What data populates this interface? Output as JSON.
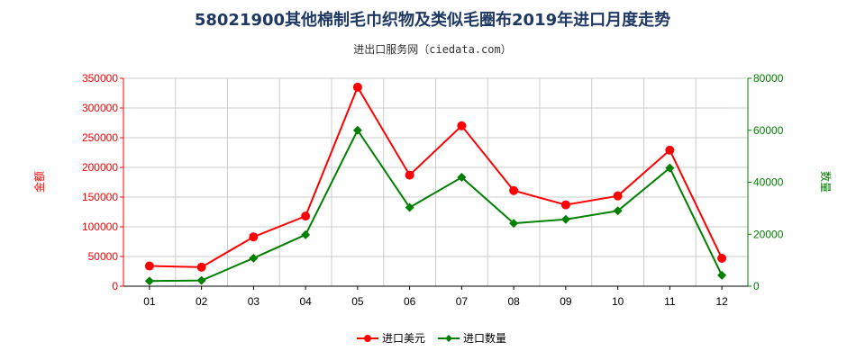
{
  "title": "58021900其他棉制毛巾织物及类似毛圈布2019年进口月度走势",
  "subtitle": "进出口服务网（ciedata.com）",
  "colors": {
    "left": "#ff0000",
    "right": "#008000",
    "grid": "#cccccc",
    "title": "#1f3864"
  },
  "chart_data": {
    "type": "line",
    "categories": [
      "01",
      "02",
      "03",
      "04",
      "05",
      "06",
      "07",
      "08",
      "09",
      "10",
      "11",
      "12"
    ],
    "y_left": {
      "label": "金额",
      "ylim": [
        0,
        350000
      ],
      "ticks": [
        "0",
        "50000",
        "100000",
        "150000",
        "200000",
        "250000",
        "300000",
        "350000"
      ]
    },
    "y_right": {
      "label": "数量",
      "ylim": [
        0,
        80000
      ],
      "ticks": [
        "0",
        "20000",
        "40000",
        "60000",
        "80000"
      ]
    },
    "grid": true,
    "legend_position": "bottom",
    "series": [
      {
        "name": "进口美元",
        "axis": "left",
        "color": "#ff0000",
        "values": [
          34000,
          32000,
          83000,
          118000,
          335000,
          187000,
          270000,
          161000,
          137000,
          152000,
          229000,
          47000
        ]
      },
      {
        "name": "进口数量",
        "axis": "right",
        "color": "#008000",
        "values": [
          2000,
          2200,
          10800,
          19800,
          60000,
          30300,
          41900,
          24200,
          25700,
          29000,
          45500,
          4200
        ]
      }
    ]
  }
}
